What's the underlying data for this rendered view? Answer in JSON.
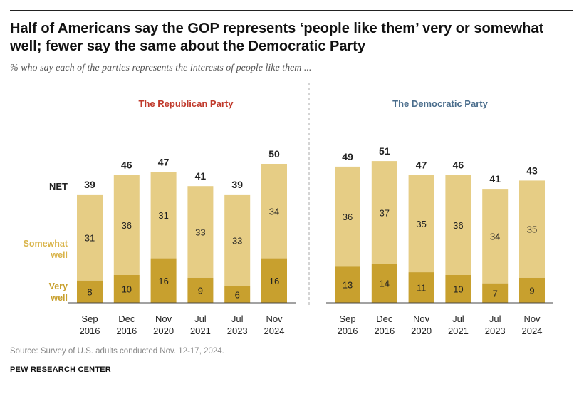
{
  "title": "Half of Americans say the GOP represents ‘people like them’ very or somewhat well; fewer say the same about the Democratic Party",
  "subtitle": "% who say each of the parties represents the interests of people like them ...",
  "source": "Source: Survey of U.S. adults conducted Nov. 12-17, 2024.",
  "organization": "PEW RESEARCH CENTER",
  "colors": {
    "very_well": "#c8a02e",
    "somewhat_well": "#e6cd85",
    "republican_label": "#c0392b",
    "democratic_label": "#4a6d8c",
    "legend_text": "#d9b44a",
    "text": "#222222"
  },
  "chart_data": [
    {
      "type": "bar",
      "stacked": true,
      "title": "The Republican Party",
      "categories": [
        "Sep 2016",
        "Dec 2016",
        "Nov 2020",
        "Jul 2021",
        "Jul 2023",
        "Nov 2024"
      ],
      "category_lines": [
        [
          "Sep",
          "2016"
        ],
        [
          "Dec",
          "2016"
        ],
        [
          "Nov",
          "2020"
        ],
        [
          "Jul",
          "2021"
        ],
        [
          "Jul",
          "2023"
        ],
        [
          "Nov",
          "2024"
        ]
      ],
      "series": [
        {
          "name": "Very well",
          "values": [
            8,
            10,
            16,
            9,
            6,
            16
          ]
        },
        {
          "name": "Somewhat well",
          "values": [
            31,
            36,
            31,
            33,
            33,
            34
          ]
        }
      ],
      "net": {
        "name": "NET",
        "values": [
          39,
          46,
          47,
          41,
          39,
          50
        ]
      }
    },
    {
      "type": "bar",
      "stacked": true,
      "title": "The Democratic Party",
      "categories": [
        "Sep 2016",
        "Dec 2016",
        "Nov 2020",
        "Jul 2021",
        "Jul 2023",
        "Nov 2024"
      ],
      "category_lines": [
        [
          "Sep",
          "2016"
        ],
        [
          "Dec",
          "2016"
        ],
        [
          "Nov",
          "2020"
        ],
        [
          "Jul",
          "2021"
        ],
        [
          "Jul",
          "2023"
        ],
        [
          "Nov",
          "2024"
        ]
      ],
      "series": [
        {
          "name": "Very well",
          "values": [
            13,
            14,
            11,
            10,
            7,
            9
          ]
        },
        {
          "name": "Somewhat well",
          "values": [
            36,
            37,
            35,
            36,
            34,
            35
          ]
        }
      ],
      "net": {
        "name": "NET",
        "values": [
          49,
          51,
          47,
          46,
          41,
          43
        ]
      }
    }
  ],
  "legend": {
    "net_label": "NET",
    "somewhat_lines": [
      "Somewhat",
      "well"
    ],
    "very_lines": [
      "Very",
      "well"
    ]
  }
}
